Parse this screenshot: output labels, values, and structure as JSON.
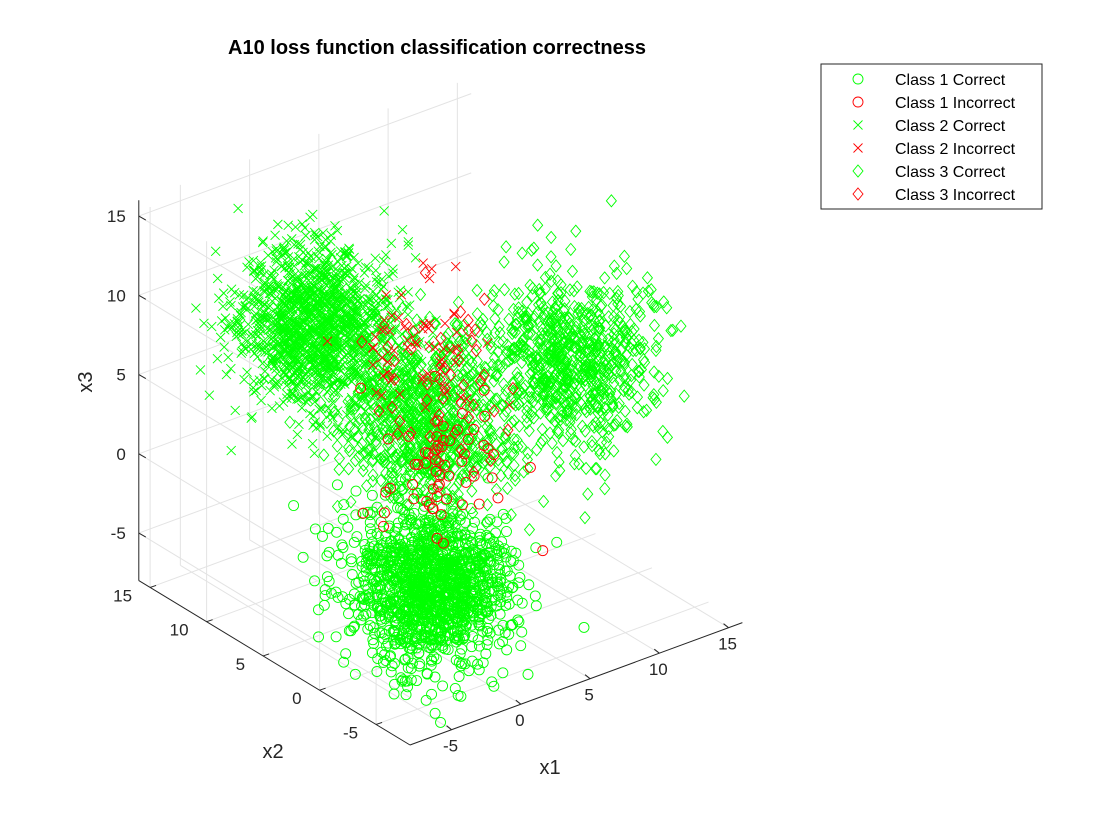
{
  "chart_data": {
    "type": "scatter",
    "title": "A10 loss function classification correctness",
    "xlabel": "x1",
    "ylabel": "x2",
    "zlabel": "x3",
    "xlim": [
      -8,
      16
    ],
    "ylim": [
      -8,
      16
    ],
    "zlim": [
      -8,
      16
    ],
    "xticks": [
      "-5",
      "0",
      "5",
      "10",
      "15"
    ],
    "yticks": [
      "-5",
      "0",
      "5",
      "10",
      "15"
    ],
    "zticks": [
      "-5",
      "0",
      "5",
      "10",
      "15"
    ],
    "xtick_values": [
      -5,
      0,
      5,
      10,
      15
    ],
    "ytick_values": [
      -5,
      0,
      5,
      10,
      15
    ],
    "ztick_values": [
      -5,
      0,
      5,
      10,
      15
    ],
    "grid": true,
    "legend_position": "top-right",
    "series": [
      {
        "name": "Class 1 Correct",
        "marker": "circle",
        "color": "#00ff00",
        "center": [
          0,
          0,
          -4
        ],
        "spread": 2.2,
        "count": 1400
      },
      {
        "name": "Class 1 Incorrect",
        "marker": "circle",
        "color": "#ff0000",
        "center": [
          2,
          2,
          2
        ],
        "spread": 2.0,
        "count": 60
      },
      {
        "name": "Class 2 Correct",
        "marker": "x",
        "color": "#00ff00",
        "center": [
          0,
          10,
          8
        ],
        "spread": 2.2,
        "count": 1400
      },
      {
        "name": "Class 2 Incorrect",
        "marker": "x",
        "color": "#ff0000",
        "center": [
          4,
          6,
          7
        ],
        "spread": 2.0,
        "count": 60
      },
      {
        "name": "Class 3 Correct",
        "marker": "diamond",
        "color": "#00ff00",
        "centers": [
          [
            10,
            0,
            7
          ],
          [
            -2,
            -2,
            8
          ]
        ],
        "spread": 2.4,
        "count": 1600
      },
      {
        "name": "Class 3 Incorrect",
        "marker": "diamond",
        "color": "#ff0000",
        "center": [
          3,
          3,
          6
        ],
        "spread": 2.0,
        "count": 50
      }
    ]
  }
}
